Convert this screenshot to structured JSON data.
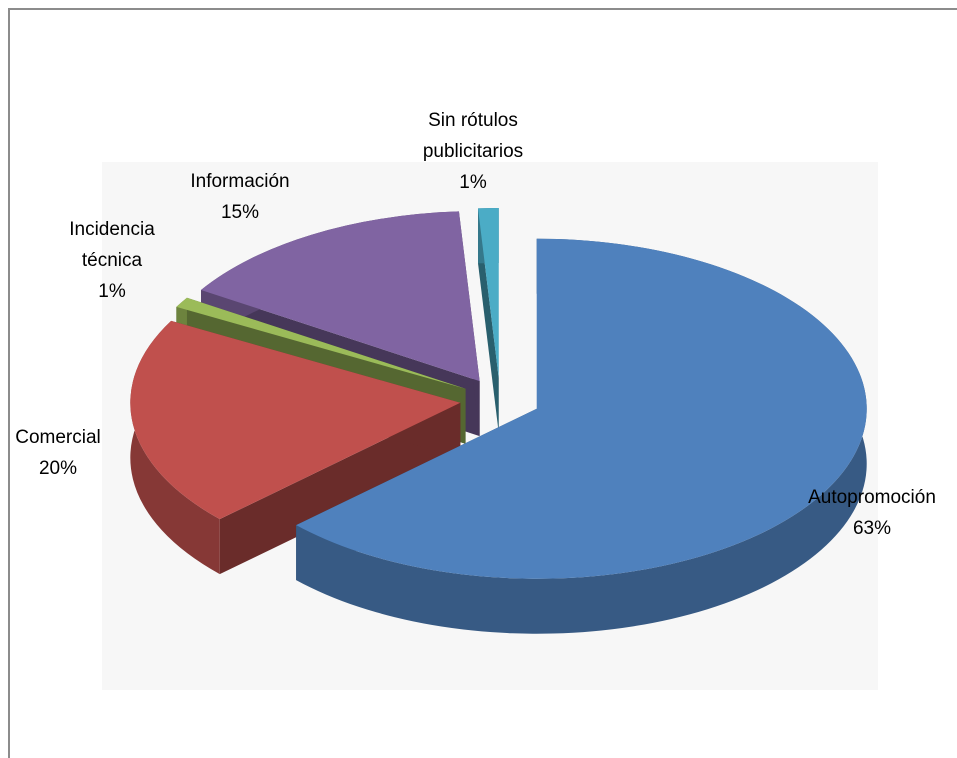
{
  "chart_data": {
    "type": "pie3d",
    "categories": [
      "Autopromoción",
      "Comercial",
      "Incidencia técnica",
      "Información",
      "Sin rótulos publicitarios"
    ],
    "values": [
      63,
      20,
      1,
      15,
      1
    ],
    "value_labels": [
      "63%",
      "20%",
      "1%",
      "15%",
      "1%"
    ],
    "colors": [
      "#4f81bd",
      "#c0504d",
      "#9bbb59",
      "#8064a2",
      "#4bacc6"
    ]
  }
}
